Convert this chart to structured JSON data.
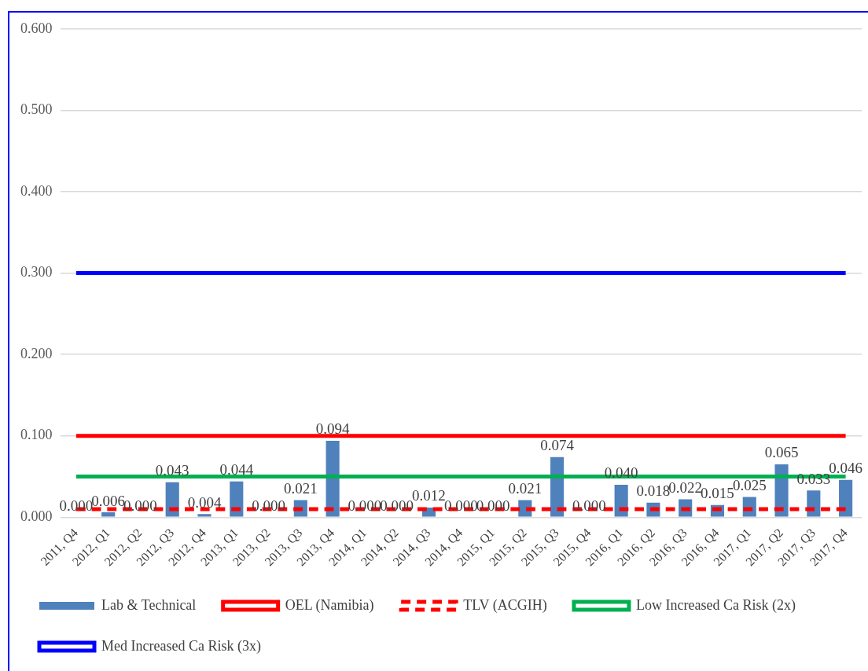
{
  "chart_data": {
    "type": "bar",
    "categories": [
      "2011, Q4",
      "2012, Q1",
      "2012, Q2",
      "2012, Q3",
      "2012, Q4",
      "2013, Q1",
      "2013, Q2",
      "2013, Q3",
      "2013, Q4",
      "2014, Q1",
      "2014, Q2",
      "2014, Q3",
      "2014, Q4",
      "2015, Q1",
      "2015, Q2",
      "2015, Q3",
      "2015, Q4",
      "2016, Q1",
      "2016, Q2",
      "2016, Q3",
      "2016, Q4",
      "2017, Q1",
      "2017, Q2",
      "2017, Q3",
      "2017, Q4"
    ],
    "series": [
      {
        "name": "Lab & Technical",
        "color": "#4f81bd",
        "values": [
          0.0,
          0.006,
          0.0,
          0.043,
          0.004,
          0.044,
          0.0,
          0.021,
          0.094,
          0.0,
          0.0,
          0.012,
          0.0,
          0.0,
          0.021,
          0.074,
          0.0,
          0.04,
          0.018,
          0.022,
          0.015,
          0.025,
          0.065,
          0.033,
          0.046
        ],
        "value_labels": [
          "0.000",
          "0.006",
          "0.000",
          "0.043",
          "0.004",
          "0.044",
          "0.000",
          "0.021",
          "0.094",
          "0.000",
          "0.000",
          "0.012",
          "0.000",
          "0.000",
          "0.021",
          "0.074",
          "0.000",
          "0.040",
          "0.018",
          "0.022",
          "0.015",
          "0.025",
          "0.065",
          "0.033",
          "0.046"
        ]
      },
      {
        "name": "OEL (Namibia)",
        "type": "line",
        "color": "#ff0000",
        "line_style": "solid",
        "values": [
          0.1,
          0.1,
          0.1,
          0.1,
          0.1,
          0.1,
          0.1,
          0.1,
          0.1,
          0.1,
          0.1,
          0.1,
          0.1,
          0.1,
          0.1,
          0.1,
          0.1,
          0.1,
          0.1,
          0.1,
          0.1,
          0.1,
          0.1,
          0.1,
          0.1
        ]
      },
      {
        "name": "TLV (ACGIH)",
        "type": "line",
        "color": "#ff0000",
        "line_style": "dashed",
        "values": [
          0.01,
          0.01,
          0.01,
          0.01,
          0.01,
          0.01,
          0.01,
          0.01,
          0.01,
          0.01,
          0.01,
          0.01,
          0.01,
          0.01,
          0.01,
          0.01,
          0.01,
          0.01,
          0.01,
          0.01,
          0.01,
          0.01,
          0.01,
          0.01,
          0.01
        ]
      },
      {
        "name": "Low Increased Ca Risk (2x)",
        "type": "line",
        "color": "#00b050",
        "line_style": "solid",
        "values": [
          0.05,
          0.05,
          0.05,
          0.05,
          0.05,
          0.05,
          0.05,
          0.05,
          0.05,
          0.05,
          0.05,
          0.05,
          0.05,
          0.05,
          0.05,
          0.05,
          0.05,
          0.05,
          0.05,
          0.05,
          0.05,
          0.05,
          0.05,
          0.05,
          0.05
        ]
      },
      {
        "name": "Med Increased Ca Risk (3x)",
        "type": "line",
        "color": "#0000ff",
        "line_style": "solid",
        "values": [
          0.3,
          0.3,
          0.3,
          0.3,
          0.3,
          0.3,
          0.3,
          0.3,
          0.3,
          0.3,
          0.3,
          0.3,
          0.3,
          0.3,
          0.3,
          0.3,
          0.3,
          0.3,
          0.3,
          0.3,
          0.3,
          0.3,
          0.3,
          0.3,
          0.3
        ]
      }
    ],
    "ylim": [
      0,
      0.6
    ],
    "yticks": [
      {
        "value": 0,
        "label": "0.000"
      },
      {
        "value": 0.1,
        "label": "0.100"
      },
      {
        "value": 0.2,
        "label": "0.200"
      },
      {
        "value": 0.3,
        "label": "0.300"
      },
      {
        "value": 0.4,
        "label": "0.400"
      },
      {
        "value": 0.5,
        "label": "0.500"
      },
      {
        "value": 0.6,
        "label": "0.600"
      }
    ],
    "grid": "y",
    "legend": "bottom",
    "marker": "none"
  }
}
